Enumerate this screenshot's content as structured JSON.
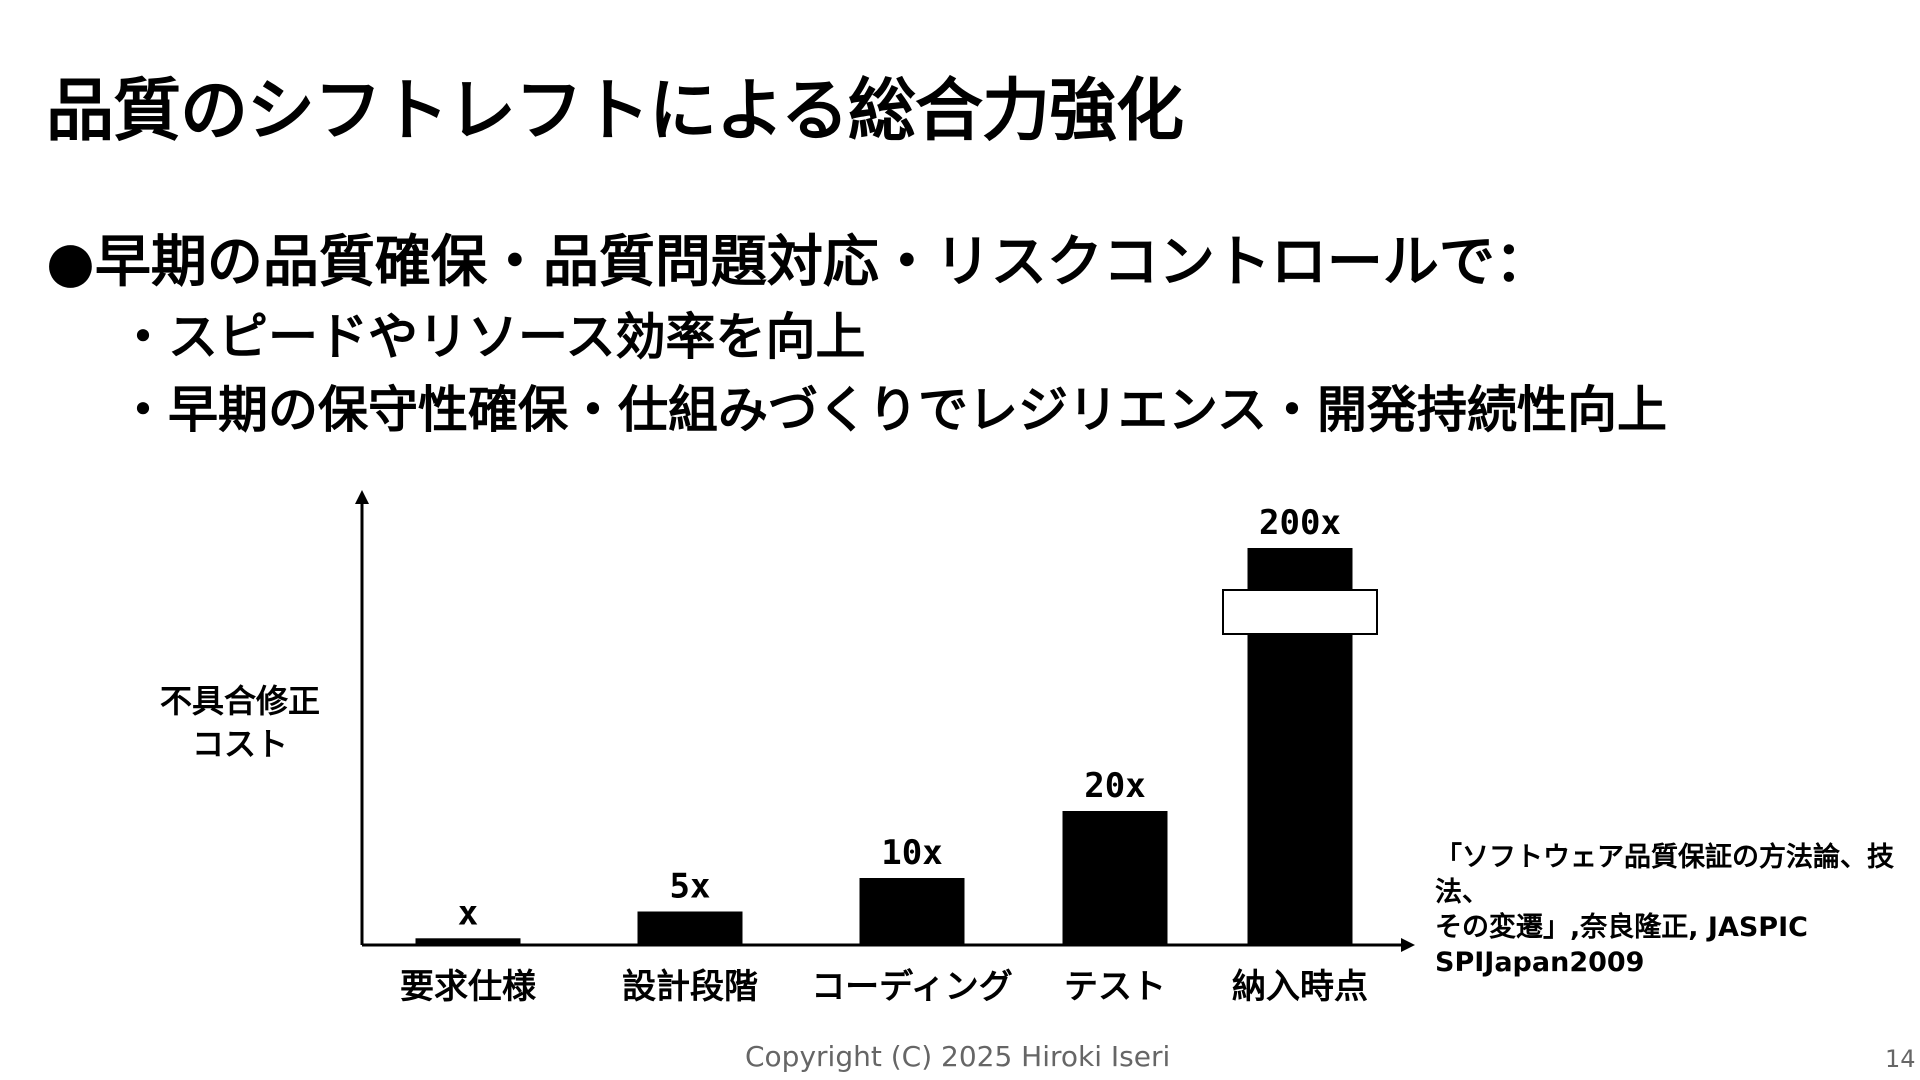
{
  "slide": {
    "title": "品質のシフトレフトによる総合力強化",
    "bullet_main": "●早期の品質確保・品質問題対応・リスクコントロールで：",
    "bullet_sub": [
      "・スピードやリソース効率を向上",
      "・早期の保守性確保・仕組みづくりでレジリエンス・開発持続性向上"
    ],
    "citation": [
      "「ソフトウェア品質保証の方法論、技法、",
      "その変遷」,奈良隆正, JASPIC",
      "SPIJapan2009"
    ],
    "footer": "Copyright (C)  2025 Hiroki Iseri",
    "page_number": "14"
  },
  "chart_data": {
    "type": "bar",
    "title": "",
    "xlabel": "",
    "ylabel_lines": [
      "不具合修正",
      "コスト"
    ],
    "categories": [
      "要求仕様",
      "設計段階",
      "コーディング",
      "テスト",
      "納入時点"
    ],
    "values": [
      1,
      5,
      10,
      20,
      200
    ],
    "value_labels": [
      "x",
      "5x",
      "10x",
      "20x",
      "200x"
    ],
    "axis_break_on": "納入時点",
    "bar_color": "#000000",
    "grid": false,
    "legend": "none"
  }
}
